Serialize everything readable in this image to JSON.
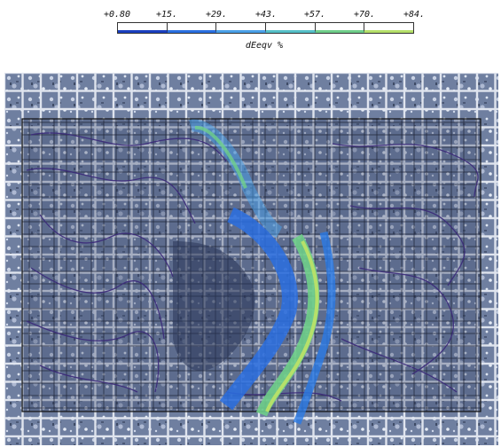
{
  "legend": {
    "ticks": [
      "+0.80",
      "+15.",
      "+29.",
      "+43.",
      "+57.",
      "+70.",
      "+84."
    ],
    "caption": "dEeqv %",
    "colors": [
      "#1a3fbf",
      "#2a6fe0",
      "#4aa0e8",
      "#55c0c8",
      "#6fcf8a",
      "#b6e06a"
    ]
  },
  "image": {
    "description_icon": "strain-field-overlay-on-microstructure",
    "contour_color": "#3b2a7a",
    "background_tone": "#6f7fa0"
  }
}
